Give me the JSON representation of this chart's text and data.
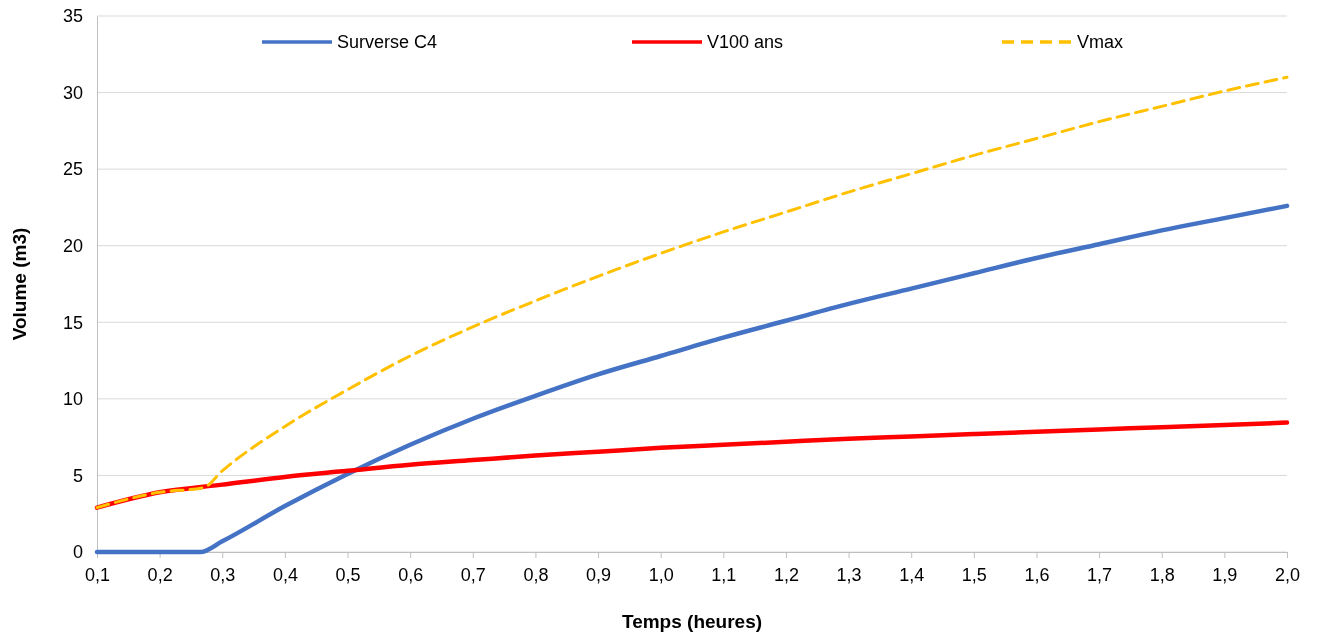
{
  "chart_data": {
    "type": "line",
    "xlabel": "Temps (heures)",
    "ylabel": "Volume (m3)",
    "xlim": [
      0.1,
      2.0
    ],
    "ylim": [
      0,
      35
    ],
    "xticks": [
      {
        "value": 0.1,
        "label": "0,1"
      },
      {
        "value": 0.2,
        "label": "0,2"
      },
      {
        "value": 0.3,
        "label": "0,3"
      },
      {
        "value": 0.4,
        "label": "0,4"
      },
      {
        "value": 0.5,
        "label": "0,5"
      },
      {
        "value": 0.6,
        "label": "0,6"
      },
      {
        "value": 0.7,
        "label": "0,7"
      },
      {
        "value": 0.8,
        "label": "0,8"
      },
      {
        "value": 0.9,
        "label": "0,9"
      },
      {
        "value": 1.0,
        "label": "1,0"
      },
      {
        "value": 1.1,
        "label": "1,1"
      },
      {
        "value": 1.2,
        "label": "1,2"
      },
      {
        "value": 1.3,
        "label": "1,3"
      },
      {
        "value": 1.4,
        "label": "1,4"
      },
      {
        "value": 1.5,
        "label": "1,5"
      },
      {
        "value": 1.6,
        "label": "1,6"
      },
      {
        "value": 1.7,
        "label": "1,7"
      },
      {
        "value": 1.8,
        "label": "1,8"
      },
      {
        "value": 1.9,
        "label": "1,9"
      },
      {
        "value": 2.0,
        "label": "2,0"
      }
    ],
    "yticks": [
      0,
      5,
      10,
      15,
      20,
      25,
      30,
      35
    ],
    "grid": "y",
    "legend": "top",
    "marker": "none",
    "series": [
      {
        "name": "Surverse C4",
        "color": "#4472c4",
        "line_style": "solid",
        "x": [
          0.1,
          0.2,
          0.25,
          0.265,
          0.3,
          0.4,
          0.5,
          0.6,
          0.7,
          0.8,
          0.9,
          1.0,
          1.1,
          1.2,
          1.3,
          1.4,
          1.5,
          1.6,
          1.7,
          1.8,
          1.9,
          2.0
        ],
        "values": [
          0,
          0,
          0,
          0,
          0.7,
          3.0,
          5.1,
          7.0,
          8.7,
          10.2,
          11.6,
          12.8,
          14.0,
          15.1,
          16.2,
          17.2,
          18.2,
          19.2,
          20.1,
          21.0,
          21.8,
          22.6
        ]
      },
      {
        "name": "V100 ans",
        "color": "#ff0000",
        "line_style": "solid",
        "x": [
          0.1,
          0.2,
          0.3,
          0.4,
          0.5,
          0.6,
          0.7,
          0.8,
          0.9,
          1.0,
          1.1,
          1.2,
          1.3,
          1.4,
          1.5,
          1.6,
          1.7,
          1.8,
          1.9,
          2.0
        ],
        "values": [
          2.9,
          3.9,
          4.4,
          4.9,
          5.3,
          5.7,
          6.0,
          6.3,
          6.55,
          6.8,
          7.0,
          7.2,
          7.4,
          7.55,
          7.7,
          7.85,
          8.0,
          8.15,
          8.3,
          8.45
        ]
      },
      {
        "name": "Vmax",
        "color": "#ffc000",
        "line_style": "dashed",
        "x": [
          0.1,
          0.2,
          0.27,
          0.3,
          0.4,
          0.5,
          0.6,
          0.7,
          0.8,
          0.9,
          1.0,
          1.1,
          1.2,
          1.3,
          1.4,
          1.5,
          1.6,
          1.7,
          1.8,
          1.9,
          2.0
        ],
        "values": [
          2.9,
          3.9,
          4.2,
          5.3,
          8.2,
          10.6,
          12.8,
          14.7,
          16.4,
          18.0,
          19.5,
          20.9,
          22.2,
          23.5,
          24.7,
          25.9,
          27.0,
          28.1,
          29.1,
          30.1,
          31.0
        ]
      }
    ]
  }
}
